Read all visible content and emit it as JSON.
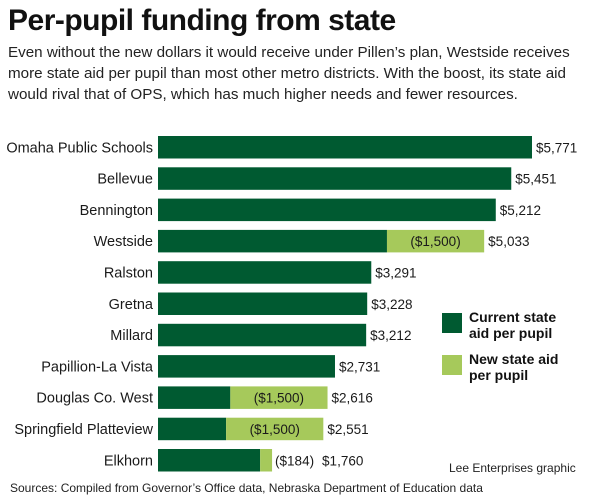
{
  "title": "Per-pupil funding from state",
  "subtitle": "Even without the new dollars it would receive under Pillen’s plan, Westside receives more state aid per pupil than most other metro districts.  With the boost, its state aid would rival that of OPS, which has much higher needs and fewer resources.",
  "credit": "Lee Enterprises graphic",
  "sources": "Sources: Compiled from Governor’s Office data, Nebraska Department of Education data",
  "colors": {
    "current": "#005a31",
    "new": "#a6c95b"
  },
  "chart_data": {
    "type": "bar",
    "orientation": "horizontal",
    "stacked": true,
    "categories": [
      "Omaha Public Schools",
      "Bellevue",
      "Bennington",
      "Westside",
      "Ralston",
      "Gretna",
      "Millard",
      "Papillion-La Vista",
      "Douglas Co. West",
      "Springfield Platteview",
      "Elkhorn"
    ],
    "series": [
      {
        "name": "Current state aid per pupil",
        "values": [
          5771,
          5451,
          5212,
          3533,
          3291,
          3228,
          3212,
          2731,
          1116,
          1051,
          1576
        ]
      },
      {
        "name": "New state aid per pupil",
        "values": [
          0,
          0,
          0,
          1500,
          0,
          0,
          0,
          0,
          1500,
          1500,
          184
        ]
      }
    ],
    "totals": [
      5771,
      5451,
      5212,
      5033,
      3291,
      3228,
      3212,
      2731,
      2616,
      2551,
      1760
    ],
    "total_labels": [
      "$5,771",
      "$5,451",
      "$5,212",
      "$5,033",
      "$3,291",
      "$3,228",
      "$3,212",
      "$2,731",
      "$2,616",
      "$2,551",
      "$1,760"
    ],
    "new_labels": [
      "",
      "",
      "",
      "($1,500)",
      "",
      "",
      "",
      "",
      "($1,500)",
      "($1,500)",
      "($184)"
    ],
    "xlim": [
      0,
      5771
    ],
    "grid": false,
    "legend": "right",
    "legend_entries": [
      "Current state aid per pupil",
      "New state aid per pupil"
    ]
  }
}
